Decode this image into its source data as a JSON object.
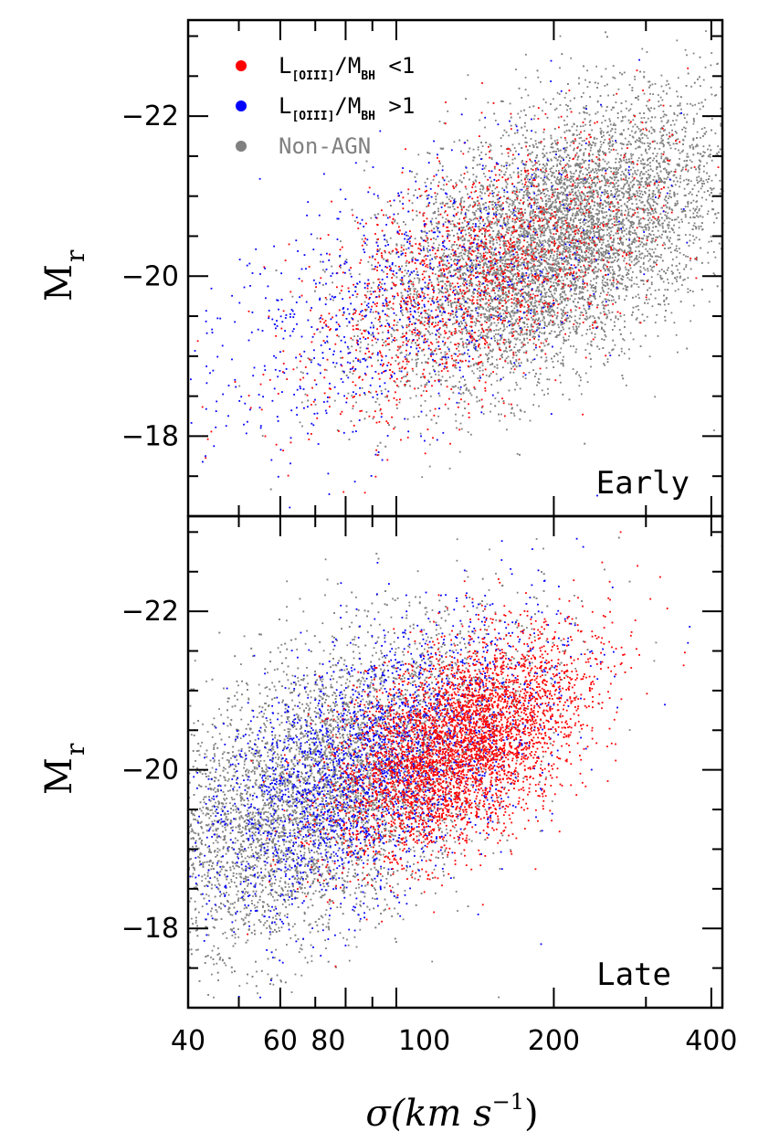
{
  "chart_data": [
    {
      "type": "scatter",
      "panel_label": "Early",
      "x_scale": "log",
      "xlim": [
        40,
        420
      ],
      "ylim": [
        -17,
        -23.2
      ],
      "y_ticks": [
        -18,
        -20,
        -22
      ],
      "ylabel_main": "M",
      "ylabel_sub": "r",
      "legend": [
        {
          "main": "L",
          "sub": "[OIII]",
          "mid": "/M",
          "sub2": "BH",
          "tail": " <1",
          "color": "#ff0000"
        },
        {
          "main": "L",
          "sub": "[OIII]",
          "mid": "/M",
          "sub2": "BH",
          "tail": " >1",
          "color": "#0000ff"
        },
        {
          "main": "Non-AGN",
          "color": "#808080"
        }
      ],
      "legend_placement": "top-left",
      "series": [
        {
          "color": "#808080",
          "center_log_sigma": 2.3,
          "slope": -2.8,
          "intercept": -14.0,
          "spread_x": 0.16,
          "spread_y": 0.75,
          "count": 9000
        },
        {
          "color": "#ff0000",
          "center_log_sigma": 2.15,
          "slope": -2.8,
          "intercept": -14.0,
          "spread_x": 0.17,
          "spread_y": 0.7,
          "count": 1600
        },
        {
          "color": "#0000ff",
          "center_log_sigma": 2.0,
          "slope": -2.6,
          "intercept": -14.5,
          "spread_x": 0.2,
          "spread_y": 0.8,
          "count": 900
        }
      ]
    },
    {
      "type": "scatter",
      "panel_label": "Late",
      "x_scale": "log",
      "xlim": [
        40,
        420
      ],
      "ylim": [
        -17,
        -23.2
      ],
      "y_ticks": [
        -18,
        -20,
        -22
      ],
      "ylabel_main": "M",
      "ylabel_sub": "r",
      "xlabel_main": "σ(km s",
      "xlabel_sup": "−1",
      "xlabel_close": ")",
      "x_ticks": [
        40,
        60,
        80,
        100,
        200,
        400
      ],
      "x_tick_labels": [
        "40",
        "60",
        "80",
        "100",
        "200",
        "400"
      ],
      "series": [
        {
          "color": "#808080",
          "center_log_sigma": 1.85,
          "slope": -3.0,
          "intercept": -14.2,
          "spread_x": 0.18,
          "spread_y": 0.85,
          "count": 8000
        },
        {
          "color": "#0000ff",
          "center_log_sigma": 1.95,
          "slope": -3.0,
          "intercept": -14.2,
          "spread_x": 0.17,
          "spread_y": 0.75,
          "count": 2600
        },
        {
          "color": "#ff0000",
          "center_log_sigma": 2.12,
          "slope": -2.8,
          "intercept": -14.4,
          "spread_x": 0.12,
          "spread_y": 0.6,
          "count": 4200
        }
      ]
    }
  ]
}
